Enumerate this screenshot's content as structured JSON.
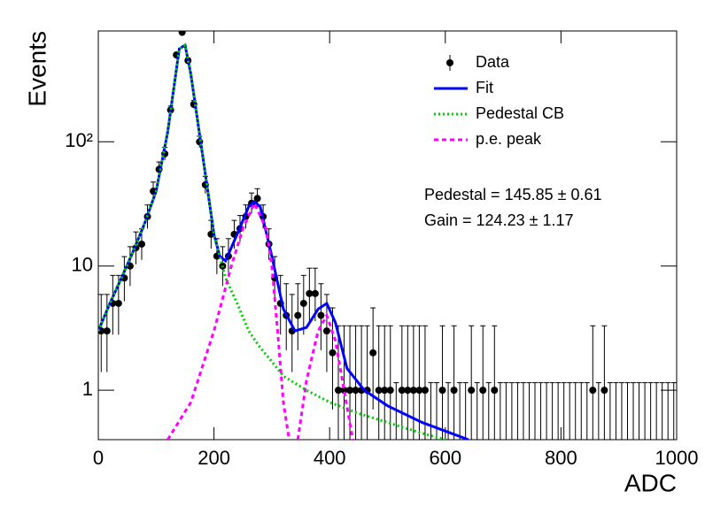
{
  "chart_data": {
    "type": "line",
    "xlabel": "ADC",
    "ylabel": "Events",
    "log_y": true,
    "legend": "upper right",
    "xlim": [
      0,
      1000
    ],
    "ylim": [
      0.4,
      780
    ],
    "xticks": [
      0,
      200,
      400,
      600,
      800,
      1000
    ],
    "yticks": [
      1,
      10,
      {
        "value": 100,
        "label": "10²"
      }
    ],
    "annotations": [
      "Pedestal = 145.85 ± 0.61",
      "Gain = 124.23 ± 1.17"
    ],
    "series": [
      {
        "name": "Data",
        "kind": "errorbar",
        "color": "#000000",
        "x": [
          5,
          15,
          25,
          35,
          45,
          55,
          65,
          75,
          85,
          95,
          105,
          115,
          125,
          135,
          145,
          155,
          165,
          175,
          185,
          195,
          205,
          215,
          225,
          235,
          245,
          255,
          265,
          275,
          285,
          295,
          305,
          315,
          325,
          335,
          345,
          355,
          365,
          375,
          385,
          395,
          405,
          415,
          425,
          435,
          445,
          455,
          465,
          475,
          485,
          495,
          505,
          515,
          525,
          535,
          545,
          555,
          565,
          575,
          585,
          595,
          605,
          615,
          625,
          635,
          645,
          655,
          665,
          675,
          685,
          695,
          705,
          715,
          725,
          735,
          745,
          755,
          765,
          775,
          785,
          795,
          805,
          815,
          825,
          835,
          845,
          855,
          865,
          875,
          885,
          895,
          905,
          915,
          925,
          935,
          945,
          955,
          965,
          975,
          985,
          995
        ],
        "values": [
          3,
          3,
          5,
          5,
          8,
          10,
          14,
          15,
          25,
          40,
          60,
          80,
          180,
          500,
          760,
          450,
          200,
          100,
          45,
          18,
          12,
          10,
          12,
          18,
          20,
          25,
          32,
          35,
          25,
          15,
          8,
          5,
          4,
          3,
          4,
          5,
          6,
          6,
          4,
          3,
          2,
          1,
          1,
          1,
          1,
          1,
          1,
          2,
          1,
          1,
          1,
          0,
          1,
          1,
          1,
          1,
          1,
          0,
          0,
          1,
          0,
          1,
          0,
          0,
          1,
          0,
          1,
          0,
          1,
          0,
          0,
          0,
          0,
          0,
          0,
          0,
          0,
          0,
          0,
          0,
          0,
          0,
          0,
          0,
          0,
          1,
          0,
          1,
          0,
          0,
          0,
          0,
          0,
          0,
          0,
          0,
          0,
          0,
          0,
          0
        ],
        "err_low": [
          1.6,
          1.6,
          2.2,
          2.2,
          2.8,
          3.1,
          3.7,
          3.8,
          5,
          6.3,
          7.7,
          8.9,
          13,
          22,
          28,
          21,
          14,
          10,
          6.7,
          4.2,
          3.4,
          3.1,
          3.4,
          4.2,
          4.4,
          5,
          5.6,
          5.9,
          5,
          3.8,
          2.8,
          2.2,
          1.9,
          1.6,
          1.9,
          2.2,
          2.4,
          2.4,
          1.9,
          1.6,
          1.3,
          0.83,
          0.83,
          0.83,
          0.83,
          0.83,
          0.83,
          1.3,
          0.83,
          0.83,
          0.83,
          0,
          0.83,
          0.83,
          0.83,
          0.83,
          0.83,
          0,
          0,
          0.83,
          0,
          0.83,
          0,
          0,
          0.83,
          0,
          0.83,
          0,
          0.83,
          0,
          0,
          0,
          0,
          0,
          0,
          0,
          0,
          0,
          0,
          0,
          0,
          0,
          0,
          0,
          0,
          0.83,
          0,
          0.83,
          0,
          0,
          0,
          0,
          0,
          0,
          0,
          0,
          0,
          0,
          0,
          0
        ],
        "err_high": [
          2.9,
          2.9,
          3.4,
          3.4,
          3.9,
          4.3,
          4.8,
          4.9,
          6,
          7.4,
          8.8,
          10,
          14,
          23,
          29,
          22,
          15,
          11,
          7.7,
          5.3,
          4.6,
          4.3,
          4.6,
          5.3,
          5.5,
          6,
          6.7,
          6.9,
          6,
          4.9,
          3.9,
          3.4,
          3.2,
          2.9,
          3.2,
          3.4,
          3.6,
          3.6,
          3.2,
          2.9,
          2.6,
          2.3,
          2.3,
          2.3,
          2.3,
          2.3,
          2.3,
          2.6,
          2.3,
          2.3,
          2.3,
          1.15,
          2.3,
          2.3,
          2.3,
          2.3,
          2.3,
          1.15,
          1.15,
          2.3,
          1.15,
          2.3,
          1.15,
          1.15,
          2.3,
          1.15,
          2.3,
          1.15,
          2.3,
          1.15,
          1.15,
          1.15,
          1.15,
          1.15,
          1.15,
          1.15,
          1.15,
          1.15,
          1.15,
          1.15,
          1.15,
          1.15,
          1.15,
          1.15,
          1.15,
          2.3,
          1.15,
          2.3,
          1.15,
          1.15,
          1.15,
          1.15,
          1.15,
          1.15,
          1.15,
          1.15,
          1.15,
          1.15,
          1.15,
          1.15
        ]
      },
      {
        "name": "Fit",
        "kind": "line",
        "style": "solid",
        "color": "#0000ff",
        "x": [
          0,
          20,
          40,
          60,
          80,
          100,
          120,
          140,
          150,
          160,
          180,
          200,
          210,
          220,
          240,
          260,
          270,
          280,
          300,
          320,
          340,
          360,
          380,
          395,
          410,
          430,
          460,
          500,
          560,
          640
        ],
        "values": [
          3,
          5,
          8,
          13,
          22,
          40,
          120,
          560,
          600,
          350,
          80,
          18,
          12,
          11,
          18,
          30,
          33,
          30,
          12,
          4.5,
          3,
          3.2,
          4.5,
          5,
          3.5,
          1.5,
          1.0,
          0.75,
          0.55,
          0.4
        ]
      },
      {
        "name": "Pedestal CB",
        "kind": "line",
        "style": "dotted",
        "color": "#00cc00",
        "x": [
          0,
          20,
          40,
          60,
          80,
          100,
          120,
          140,
          150,
          160,
          180,
          200,
          220,
          240,
          260,
          280,
          300,
          320,
          360,
          400,
          450,
          500,
          560,
          600
        ],
        "values": [
          3,
          5,
          8,
          13,
          22,
          40,
          120,
          560,
          600,
          350,
          80,
          18,
          8,
          5,
          3,
          2.2,
          1.7,
          1.3,
          1,
          0.8,
          0.65,
          0.55,
          0.45,
          0.4
        ]
      },
      {
        "name": "p.e. peak",
        "kind": "line",
        "style": "dashed",
        "color": "#ff00ff",
        "x": [
          120,
          160,
          200,
          230,
          250,
          270,
          290,
          300,
          310,
          320,
          330,
          335,
          345,
          360,
          380,
          395,
          410,
          425,
          440
        ],
        "values": [
          0.4,
          0.8,
          3,
          10,
          20,
          32,
          20,
          10,
          3,
          0.8,
          0.4,
          null,
          0.4,
          1.2,
          3,
          4,
          2.5,
          1,
          0.4
        ]
      }
    ]
  }
}
